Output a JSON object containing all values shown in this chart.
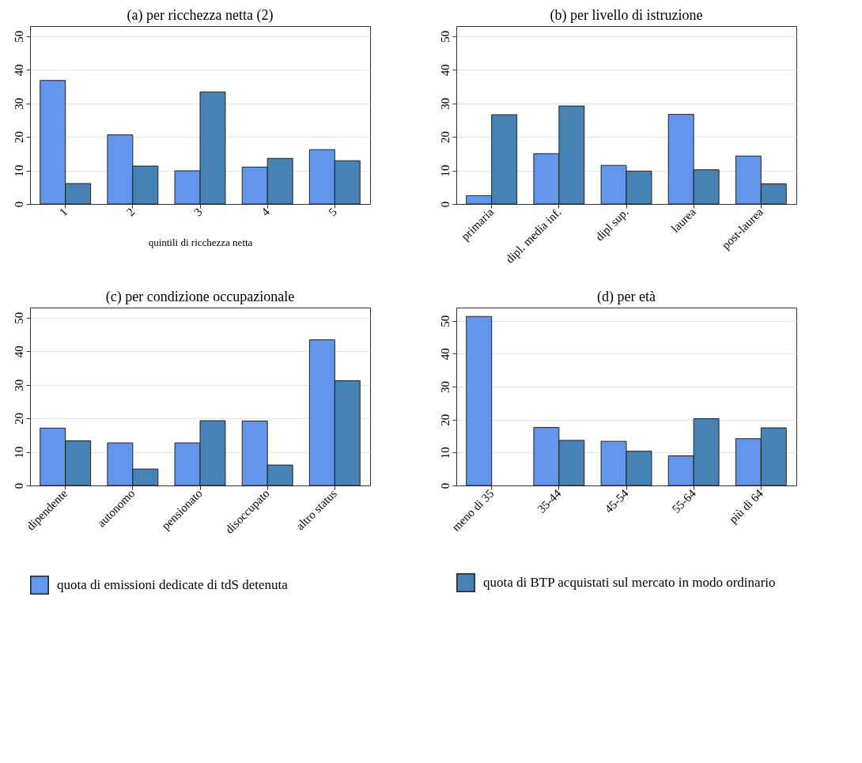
{
  "chart_data": [
    {
      "type": "bar",
      "title": "(a) per ricchezza netta (2)",
      "xlabel": "quintili di ricchezza netta",
      "categories": [
        "1",
        "2",
        "3",
        "4",
        "5"
      ],
      "ylim": [
        0,
        53
      ],
      "yticks": [
        0,
        10,
        20,
        30,
        40,
        50
      ],
      "grid": "y",
      "series": [
        {
          "color": "#6495ed",
          "values": [
            36.8,
            20.6,
            9.9,
            11.0,
            16.2
          ]
        },
        {
          "color": "#4682b4",
          "values": [
            6.1,
            11.3,
            33.4,
            13.6,
            12.9
          ]
        }
      ]
    },
    {
      "type": "bar",
      "title": "(b) per livello di istruzione",
      "categories": [
        "primaria",
        "dipl. media inf.",
        "dipl sup.",
        "laurea",
        "post-laurea"
      ],
      "ylim": [
        0,
        53
      ],
      "yticks": [
        0,
        10,
        20,
        30,
        40,
        50
      ],
      "grid": "y",
      "series": [
        {
          "color": "#6495ed",
          "values": [
            2.5,
            15.0,
            11.5,
            26.7,
            14.3
          ]
        },
        {
          "color": "#4682b4",
          "values": [
            26.6,
            29.2,
            9.8,
            10.2,
            6.0
          ]
        }
      ]
    },
    {
      "type": "bar",
      "title": "(c) per condizione occupazionale",
      "categories": [
        "dipendente",
        "autonomo",
        "pensionato",
        "disoccupato",
        "altro status"
      ],
      "ylim": [
        0,
        53
      ],
      "yticks": [
        0,
        10,
        20,
        30,
        40,
        50
      ],
      "grid": "y",
      "legend": "bottom",
      "series": [
        {
          "name": "quota di emissioni dedicate di tdS detenuta",
          "color": "#6495ed",
          "values": [
            17.1,
            12.7,
            12.7,
            19.2,
            43.4
          ]
        },
        {
          "color": "#4682b4",
          "values": [
            13.3,
            4.9,
            19.3,
            6.1,
            31.2
          ]
        }
      ]
    },
    {
      "type": "bar",
      "title": "(d) per età",
      "categories": [
        "meno di 35",
        "35-44",
        "45-54",
        "55-64",
        "più di 64"
      ],
      "ylim": [
        0,
        54
      ],
      "yticks": [
        0,
        10,
        20,
        30,
        40,
        50
      ],
      "grid": "y",
      "legend": "bottom",
      "series": [
        {
          "color": "#6495ed",
          "values": [
            51.3,
            17.6,
            13.4,
            9.0,
            14.2
          ]
        },
        {
          "name": "quota di BTP acquistati sul mercato in modo ordinario",
          "color": "#4682b4",
          "values": [
            null,
            13.7,
            10.4,
            20.3,
            17.5
          ]
        }
      ]
    }
  ]
}
